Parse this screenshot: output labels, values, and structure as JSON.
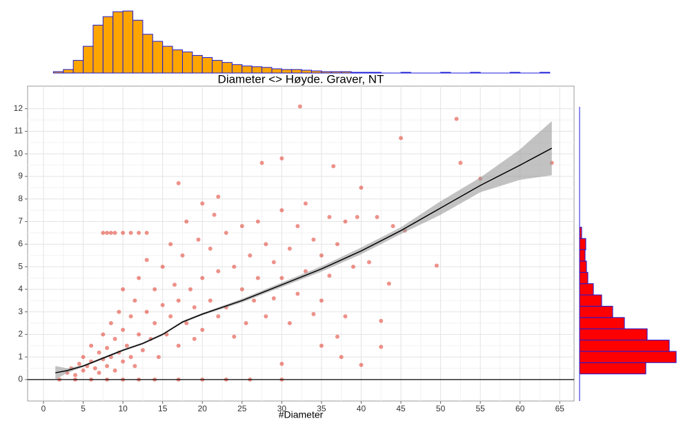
{
  "chart_data": {
    "type": "scatter",
    "title": "Diameter <> Høyde. Graver, NT",
    "x_label": "#Diameter",
    "x": [
      3,
      3.5,
      4,
      4.5,
      5,
      5,
      5.5,
      6,
      6,
      6.5,
      7,
      7,
      7.5,
      7.5,
      8,
      8,
      8.5,
      8.5,
      9,
      9,
      9.5,
      9.5,
      10,
      10,
      10,
      10.5,
      11,
      11,
      11.5,
      11.5,
      12,
      12,
      12.5,
      13,
      13,
      13.5,
      14,
      14,
      14.5,
      15,
      15,
      15.5,
      16,
      16,
      16.5,
      17,
      17,
      17.5,
      18,
      18,
      18.5,
      19,
      19,
      19.5,
      20,
      20,
      21,
      21,
      21.5,
      22,
      22,
      23,
      23,
      24,
      24,
      25,
      25,
      25.5,
      26,
      26.5,
      27,
      27,
      28,
      28,
      29,
      29,
      30,
      30,
      31,
      31,
      32,
      32,
      33,
      33,
      34,
      34,
      35,
      35,
      36,
      36,
      37,
      37,
      38,
      38,
      39,
      39.5,
      41,
      42,
      42.5,
      44,
      45.5,
      30,
      35,
      37.5,
      2,
      4,
      6,
      8,
      10,
      12,
      14,
      17,
      20,
      23,
      26,
      30,
      7.5,
      8,
      8.5,
      9,
      10,
      11,
      12,
      13,
      32.3,
      52,
      45,
      30,
      52.5,
      64,
      27.5,
      36.5,
      55,
      40,
      17,
      20,
      22,
      49.5,
      43.5,
      42.5,
      40
    ],
    "y": [
      0.3,
      0.5,
      0.2,
      0.7,
      0.4,
      1.0,
      0.6,
      0.8,
      1.5,
      0.5,
      1.2,
      0.3,
      2.0,
      0.9,
      1.4,
      0.6,
      2.5,
      1.0,
      1.8,
      0.4,
      3.0,
      1.2,
      2.2,
      0.8,
      4.0,
      1.5,
      2.8,
      1.0,
      3.5,
      0.6,
      2.0,
      4.5,
      1.3,
      3.0,
      5.3,
      1.8,
      2.5,
      4.0,
      1.0,
      3.3,
      5.0,
      2.0,
      2.8,
      6.0,
      4.2,
      1.5,
      3.5,
      5.5,
      2.5,
      7.0,
      4.0,
      3.2,
      1.8,
      6.2,
      4.5,
      2.2,
      3.5,
      5.8,
      7.3,
      2.8,
      4.8,
      6.5,
      3.2,
      5.0,
      1.9,
      4.0,
      6.8,
      2.5,
      5.5,
      3.5,
      7.0,
      4.5,
      2.8,
      6.0,
      5.2,
      3.6,
      4.5,
      7.5,
      2.5,
      5.8,
      6.8,
      3.8,
      4.8,
      7.8,
      2.9,
      6.2,
      5.5,
      3.5,
      7.2,
      4.6,
      1.9,
      6.0,
      7.0,
      2.8,
      5.0,
      7.2,
      5.2,
      7.2,
      2.6,
      6.8,
      6.6,
      0.7,
      1.5,
      1.0,
      0,
      0,
      0,
      0,
      0,
      0,
      0,
      0,
      0,
      0,
      0,
      0,
      6.5,
      6.5,
      6.5,
      6.5,
      6.5,
      6.5,
      6.5,
      6.5,
      12.1,
      11.55,
      10.7,
      9.8,
      9.6,
      9.6,
      9.6,
      9.45,
      8.9,
      8.5,
      8.7,
      7.8,
      8.1,
      5.05,
      4.25,
      1.45,
      0.65
    ],
    "color": "#e0382a",
    "xlim": [
      -2,
      66.8
    ],
    "ylim": [
      -0.95,
      13.0
    ],
    "xticks": [
      0,
      5,
      10,
      15,
      20,
      25,
      30,
      35,
      40,
      45,
      50,
      55,
      60,
      65
    ],
    "yticks": [
      0,
      1,
      2,
      3,
      4,
      5,
      6,
      7,
      8,
      9,
      10,
      11,
      12
    ],
    "grid": true,
    "hline": 0,
    "smooth": {
      "x": [
        1.5,
        3,
        5,
        7.5,
        10,
        12.5,
        15,
        17.5,
        20,
        25,
        30,
        35,
        40,
        45,
        50,
        55,
        60,
        64
      ],
      "y": [
        0.3,
        0.4,
        0.6,
        0.95,
        1.3,
        1.6,
        2.0,
        2.55,
        2.9,
        3.5,
        4.2,
        4.9,
        5.7,
        6.6,
        7.6,
        8.6,
        9.5,
        10.25
      ],
      "lower": [
        0.0,
        0.3,
        0.55,
        0.9,
        1.25,
        1.55,
        1.95,
        2.5,
        2.85,
        3.42,
        4.1,
        4.78,
        5.55,
        6.45,
        7.3,
        8.3,
        8.85,
        9.05
      ],
      "upper": [
        0.6,
        0.5,
        0.65,
        1.0,
        1.35,
        1.65,
        2.05,
        2.6,
        2.95,
        3.58,
        4.3,
        5.02,
        5.85,
        6.75,
        7.9,
        8.95,
        10.2,
        11.45
      ]
    },
    "top_histogram": {
      "bins": [
        1.25,
        2.5,
        3.75,
        5,
        6.25,
        7.5,
        8.75,
        10,
        11.25,
        12.5,
        13.75,
        15,
        16.25,
        17.5,
        18.75,
        20,
        21.25,
        22.5,
        23.75,
        25,
        26.25,
        27.5,
        28.75,
        30,
        31.25,
        32.5,
        33.75,
        35,
        36.25,
        37.5,
        38.75,
        40,
        41.25,
        42.5,
        43.75,
        45,
        46.25,
        47.5,
        48.75,
        50,
        51.25,
        52.5,
        53.75,
        55,
        56.25,
        57.5,
        58.75,
        60,
        61.25,
        62.5,
        63.75
      ],
      "counts": [
        2,
        5,
        18,
        38,
        68,
        80,
        87,
        88,
        75,
        55,
        45,
        38,
        33,
        30,
        25,
        22,
        18,
        15,
        12,
        10,
        9,
        8,
        6,
        5,
        5,
        4,
        3,
        2,
        2,
        2,
        1,
        1,
        1,
        0,
        0,
        1,
        0,
        0,
        0,
        1,
        0,
        0,
        1,
        0,
        0,
        0,
        1,
        0,
        0,
        1
      ],
      "color": "#ffa500",
      "edge_color": "#1a1adb"
    },
    "right_histogram": {
      "bins": [
        0.25,
        0.75,
        1.25,
        1.75,
        2.25,
        2.75,
        3.25,
        3.75,
        4.25,
        4.75,
        5.25,
        5.75,
        6.25,
        6.75
      ],
      "counts": [
        96,
        140,
        130,
        98,
        65,
        48,
        32,
        20,
        12,
        10,
        8,
        9,
        3
      ],
      "color": "#ff0000",
      "edge_color": "#1a1adb"
    }
  }
}
